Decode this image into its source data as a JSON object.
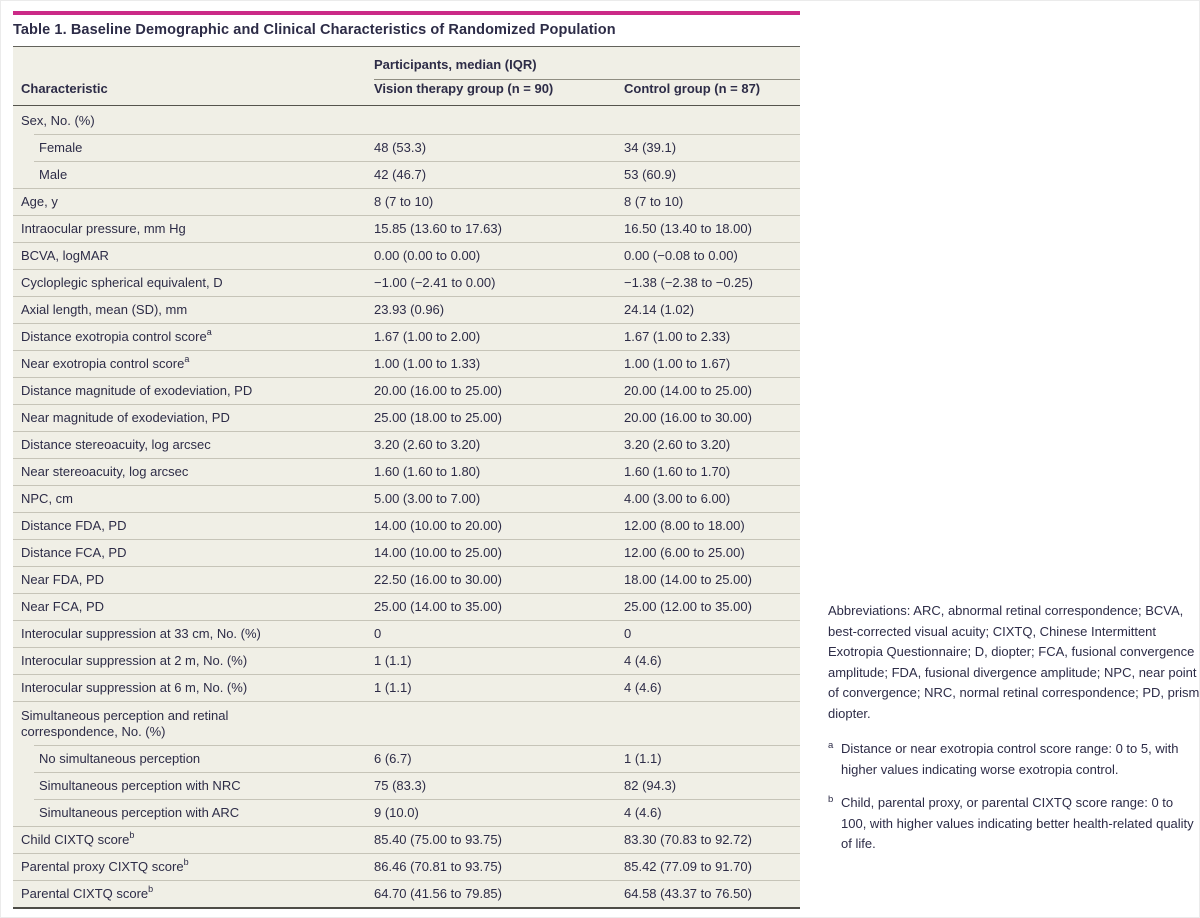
{
  "colors": {
    "accent_rule": "#cb2a87",
    "text": "#2d2c47",
    "row_background": "#f0efe6"
  },
  "page": {
    "title": "Table 1. Baseline Demographic and Clinical Characteristics of Randomized Population"
  },
  "table": {
    "header": {
      "characteristic": "Characteristic",
      "group_header": "Participants, median (IQR)",
      "col1": "Vision therapy group (n = 90)",
      "col2": "Control group (n = 87)"
    },
    "rows": [
      {
        "type": "section",
        "label": "Sex, No. (%)"
      },
      {
        "type": "sub",
        "label": "Female",
        "v1": "48 (53.3)",
        "v2": "34 (39.1)"
      },
      {
        "type": "sub",
        "label": "Male",
        "v1": "42 (46.7)",
        "v2": "53 (60.9)"
      },
      {
        "type": "top",
        "label": "Age, y",
        "v1": "8 (7 to 10)",
        "v2": "8 (7 to 10)"
      },
      {
        "type": "top",
        "label": "Intraocular pressure, mm Hg",
        "v1": "15.85 (13.60 to 17.63)",
        "v2": "16.50 (13.40 to 18.00)"
      },
      {
        "type": "top",
        "label": "BCVA, logMAR",
        "v1": "0.00 (0.00 to 0.00)",
        "v2": "0.00 (−0.08 to 0.00)"
      },
      {
        "type": "top",
        "label": "Cycloplegic spherical equivalent, D",
        "v1": "−1.00 (−2.41 to 0.00)",
        "v2": "−1.38 (−2.38 to −0.25)"
      },
      {
        "type": "top",
        "label": "Axial length, mean (SD), mm",
        "v1": "23.93 (0.96)",
        "v2": "24.14 (1.02)"
      },
      {
        "type": "top",
        "label": "Distance exotropia control score",
        "sup": "a",
        "v1": "1.67 (1.00 to 2.00)",
        "v2": "1.67 (1.00 to 2.33)"
      },
      {
        "type": "top",
        "label": "Near exotropia control score",
        "sup": "a",
        "v1": "1.00 (1.00 to 1.33)",
        "v2": "1.00 (1.00 to 1.67)"
      },
      {
        "type": "top",
        "label": "Distance magnitude of exodeviation, PD",
        "v1": "20.00 (16.00 to 25.00)",
        "v2": "20.00 (14.00 to 25.00)"
      },
      {
        "type": "top",
        "label": "Near magnitude of exodeviation, PD",
        "v1": "25.00 (18.00 to 25.00)",
        "v2": "20.00 (16.00 to 30.00)"
      },
      {
        "type": "top",
        "label": "Distance stereoacuity, log arcsec",
        "v1": "3.20 (2.60 to 3.20)",
        "v2": "3.20 (2.60 to 3.20)"
      },
      {
        "type": "top",
        "label": "Near stereoacuity, log arcsec",
        "v1": "1.60 (1.60 to 1.80)",
        "v2": "1.60 (1.60 to 1.70)"
      },
      {
        "type": "top",
        "label": "NPC, cm",
        "v1": "5.00 (3.00 to 7.00)",
        "v2": "4.00 (3.00 to 6.00)"
      },
      {
        "type": "top",
        "label": "Distance FDA, PD",
        "v1": "14.00 (10.00 to 20.00)",
        "v2": "12.00 (8.00 to 18.00)"
      },
      {
        "type": "top",
        "label": "Distance FCA, PD",
        "v1": "14.00 (10.00 to 25.00)",
        "v2": "12.00 (6.00 to 25.00)"
      },
      {
        "type": "top",
        "label": "Near FDA, PD",
        "v1": "22.50 (16.00 to 30.00)",
        "v2": "18.00 (14.00 to 25.00)"
      },
      {
        "type": "top",
        "label": "Near FCA, PD",
        "v1": "25.00 (14.00 to 35.00)",
        "v2": "25.00 (12.00 to 35.00)"
      },
      {
        "type": "top",
        "label": "Interocular suppression at 33 cm, No. (%)",
        "v1": "0",
        "v2": "0"
      },
      {
        "type": "top",
        "label": "Interocular suppression at 2 m, No. (%)",
        "v1": "1 (1.1)",
        "v2": "4 (4.6)"
      },
      {
        "type": "top",
        "label": "Interocular suppression at 6 m, No. (%)",
        "v1": "1 (1.1)",
        "v2": "4 (4.6)"
      },
      {
        "type": "section",
        "label": "Simultaneous perception and retinal correspondence, No. (%)"
      },
      {
        "type": "sub",
        "label": "No simultaneous perception",
        "v1": "6 (6.7)",
        "v2": "1 (1.1)"
      },
      {
        "type": "sub",
        "label": "Simultaneous perception with NRC",
        "v1": "75 (83.3)",
        "v2": "82 (94.3)"
      },
      {
        "type": "sub",
        "label": "Simultaneous perception with ARC",
        "v1": "9 (10.0)",
        "v2": "4 (4.6)"
      },
      {
        "type": "top",
        "label": "Child CIXTQ score",
        "sup": "b",
        "v1": "85.40 (75.00 to 93.75)",
        "v2": "83.30 (70.83 to 92.72)"
      },
      {
        "type": "top",
        "label": "Parental proxy CIXTQ score",
        "sup": "b",
        "v1": "86.46 (70.81 to 93.75)",
        "v2": "85.42 (77.09 to 91.70)"
      },
      {
        "type": "top",
        "label": "Parental CIXTQ score",
        "sup": "b",
        "v1": "64.70 (41.56 to 79.85)",
        "v2": "64.58 (43.37 to 76.50)"
      }
    ]
  },
  "footnotes": {
    "abbreviations": "Abbreviations: ARC, abnormal retinal correspondence; BCVA, best-corrected visual acuity; CIXTQ, Chinese Intermittent Exotropia Questionnaire; D, diopter; FCA, fusional convergence amplitude; FDA, fusional divergence amplitude; NPC, near point of convergence; NRC, normal retinal correspondence; PD, prism diopter.",
    "a_marker": "a",
    "a_text": "Distance or near exotropia control score range: 0 to 5, with higher values indicating worse exotropia control.",
    "b_marker": "b",
    "b_text": "Child, parental proxy, or parental CIXTQ score range: 0 to 100, with higher values indicating better health-related quality of life."
  }
}
